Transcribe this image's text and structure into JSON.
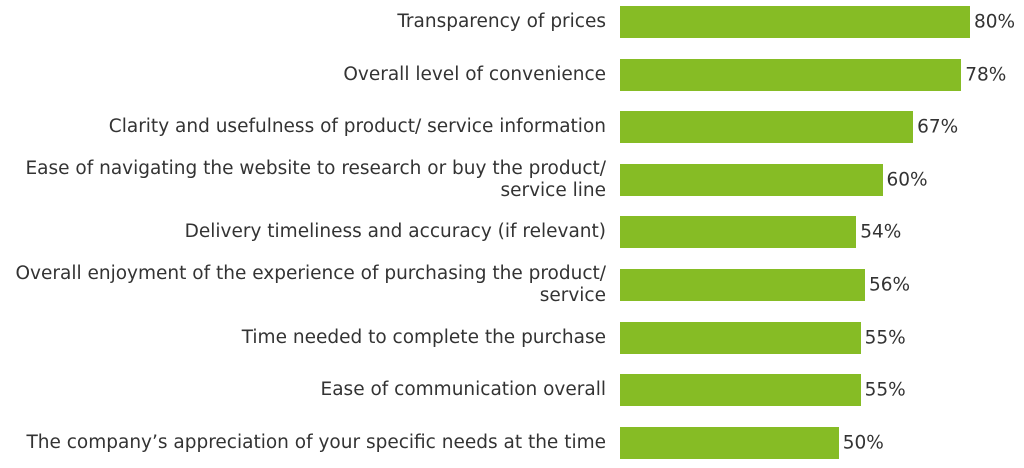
{
  "chart_data": {
    "type": "bar",
    "orientation": "horizontal",
    "color": "#86bc25",
    "categories": [
      "Transparency of prices",
      "Overall level of convenience",
      "Clarity and usefulness of product/ service information",
      "Ease of navigating the website to research or buy the product/ service line",
      "Delivery timeliness and accuracy (if relevant)",
      "Overall enjoyment of the experience of purchasing the product/ service",
      "Time needed to complete the purchase",
      "Ease of communication overall",
      "The company’s appreciation of your specific needs at the time"
    ],
    "values": [
      80,
      78,
      67,
      60,
      54,
      56,
      55,
      55,
      50
    ],
    "value_labels": [
      "80%",
      "78%",
      "67%",
      "60%",
      "54%",
      "56%",
      "55%",
      "55%",
      "50%"
    ]
  }
}
